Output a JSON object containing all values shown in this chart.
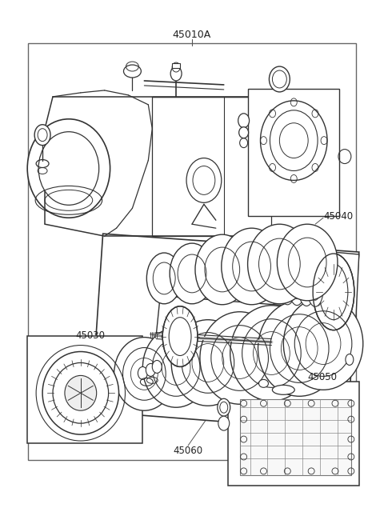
{
  "title_label": "45010A",
  "label_45040": "45040",
  "label_45030": "45030",
  "label_45050": "45050",
  "label_45060": "45060",
  "bg_color": "#ffffff",
  "line_color": "#333333",
  "border_color": "#555555",
  "text_color": "#222222",
  "font_size": 8.5,
  "fig_width": 4.8,
  "fig_height": 6.55,
  "dpi": 100,
  "outer_border": [
    0.07,
    0.08,
    0.93,
    0.88
  ]
}
